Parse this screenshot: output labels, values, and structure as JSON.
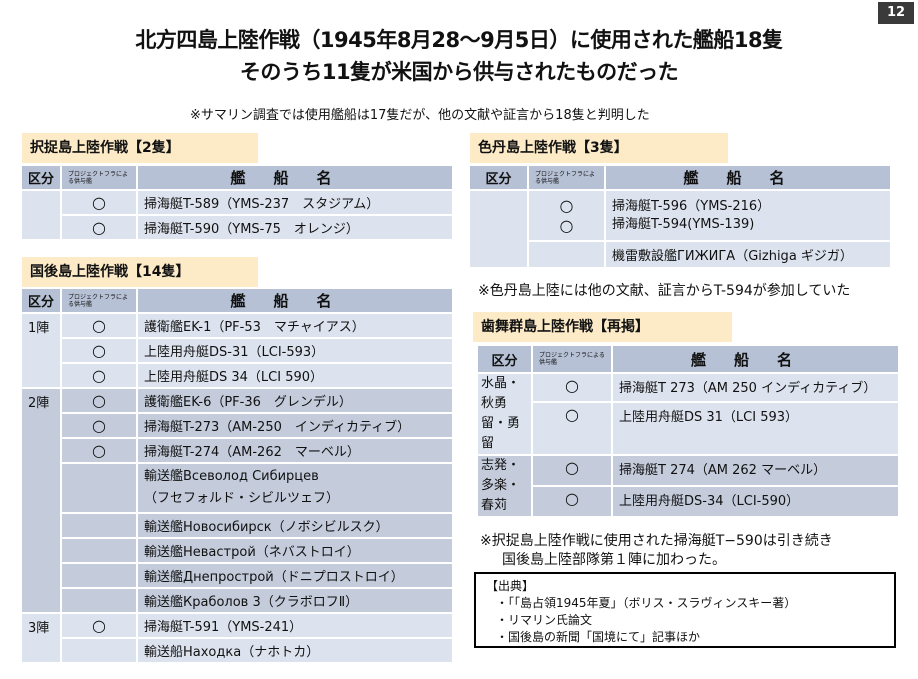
{
  "page_number": "12",
  "title_line1": "北方四島上陸作戦（1945年8月28～9月5日）に使用された艦船18隻",
  "title_line2": "そのうち11隻が米国から供与されたものだった",
  "top_note": "※サマリン調査では使用艦船は17隻だが、他の文献や証言から18隻と判明した",
  "headers": {
    "kubun": "区分",
    "project": "プロジェクトフラによる供与艦",
    "ship": "艦船名"
  },
  "etorofu": {
    "title": "択捉島上陸作戦【2隻】",
    "rows": [
      {
        "mark": "○",
        "name": "掃海艇T-589（YMS-237　スタジアム）"
      },
      {
        "mark": "○",
        "name": "掃海艇T-590（YMS-75　オレンジ）"
      }
    ]
  },
  "kunashiri": {
    "title": "国後島上陸作戦【14隻】",
    "groups": [
      {
        "label": "1陣",
        "rows": [
          {
            "mark": "○",
            "name": "護衛艦EK-1（PF-53　マチャイアス）"
          },
          {
            "mark": "○",
            "name": "上陸用舟艇DS-31（LCI-593）"
          },
          {
            "mark": "○",
            "name": "上陸用舟艇DS 34（LCI 590）"
          }
        ]
      },
      {
        "label": "2陣",
        "rows": [
          {
            "mark": "○",
            "name": "護衛艦EK-6（PF-36　グレンデル）"
          },
          {
            "mark": "○",
            "name": "掃海艇T-273（AM-250　インディカティブ）"
          },
          {
            "mark": "○",
            "name": "掃海艇T-274（AM-262　マーベル）"
          },
          {
            "mark": "",
            "name": "輸送艦Всеволод Сибирцев",
            "name2": "（フセフォルド・シビルツェフ）"
          },
          {
            "mark": "",
            "name": "輸送艦Новосибирск（ノボシビルスク）"
          },
          {
            "mark": "",
            "name": "輸送艦Невастрой（ネバストロイ）"
          },
          {
            "mark": "",
            "name": "輸送艦Днепрострой（ドニプロストロイ）"
          },
          {
            "mark": "",
            "name": "輸送艦Краболов 3（クラボロフⅡ）"
          }
        ]
      },
      {
        "label": "3陣",
        "rows": [
          {
            "mark": "○",
            "name": "掃海艇T-591（YMS-241）"
          },
          {
            "mark": "",
            "name": "輸送船Находка（ナホトカ）"
          }
        ]
      }
    ]
  },
  "shikotan": {
    "title": "色丹島上陸作戦【3隻】",
    "rows": [
      {
        "mark": "○",
        "name": "掃海艇T-596（YMS-216）"
      },
      {
        "mark": "○",
        "name": "掃海艇T-594(YMS-139)"
      },
      {
        "mark": "",
        "name": "機雷敷設艦ГИЖИГА（Gizhiga ギジガ）"
      }
    ],
    "note": "※色丹島上陸には他の文献、証言からT-594が参加していた"
  },
  "habomai": {
    "title": "歯舞群島上陸作戦【再掲】",
    "groups": [
      {
        "label": "水晶・秋勇留・勇留",
        "rows": [
          {
            "mark": "○",
            "name": "掃海艇T 273（AM 250 インディカティブ）"
          },
          {
            "mark": "○",
            "name": "上陸用舟艇DS 31（LCI 593）"
          }
        ]
      },
      {
        "label": "志発・多楽・春苅",
        "rows": [
          {
            "mark": "○",
            "name": "掃海艇T 274（AM 262 マーベル）"
          },
          {
            "mark": "○",
            "name": "上陸用舟艇DS-34（LCI-590）"
          }
        ]
      }
    ],
    "note_line1": "※択捉島上陸作戦に使用された掃海艇T−590は引き続き",
    "note_line2": "国後島上陸部隊第１陣に加わった。"
  },
  "sources": {
    "title": "【出典】",
    "items": [
      "・「「島占領1945年夏」（ボリス・スラヴィンスキー著）",
      "・リマリン氏論文",
      "・国後島の新聞「国境にて」記事ほか"
    ]
  }
}
